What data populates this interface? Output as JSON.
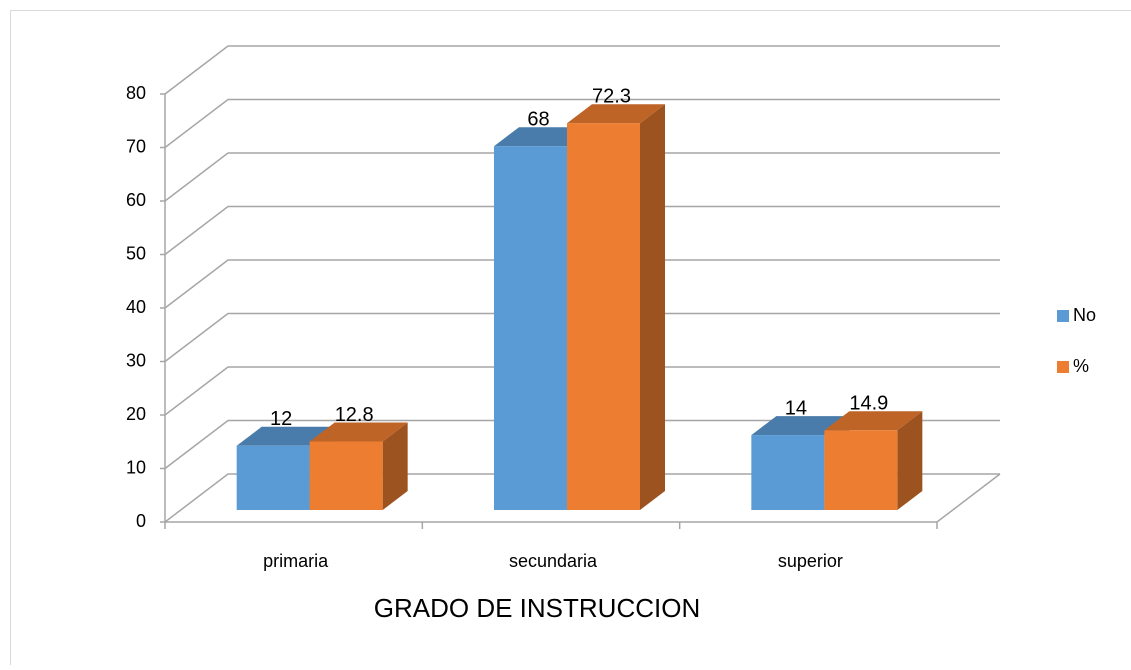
{
  "chart_data": {
    "type": "bar3d",
    "x_label": "GRADO DE INSTRUCCION",
    "categories": [
      "primaria",
      "secundaria",
      "superior"
    ],
    "series": [
      {
        "name": "No",
        "color": "#5b9bd5",
        "values": [
          12,
          68,
          14
        ]
      },
      {
        "name": "%",
        "color": "#ed7d31",
        "values": [
          12.8,
          72.3,
          14.9
        ]
      }
    ],
    "ylim": [
      0,
      80
    ],
    "yticks": [
      0,
      10,
      20,
      30,
      40,
      50,
      60,
      70,
      80
    ],
    "grid": true,
    "legend": "right"
  }
}
